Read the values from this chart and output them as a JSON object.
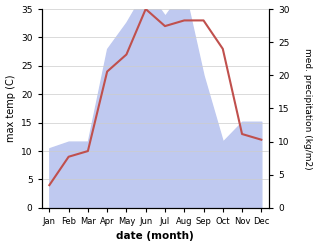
{
  "months": [
    "Jan",
    "Feb",
    "Mar",
    "Apr",
    "May",
    "Jun",
    "Jul",
    "Aug",
    "Sep",
    "Oct",
    "Nov",
    "Dec"
  ],
  "temperature": [
    4,
    9,
    10,
    24,
    27,
    35,
    32,
    33,
    33,
    28,
    13,
    12
  ],
  "precipitation": [
    9,
    10,
    10,
    24,
    28,
    33,
    29,
    33,
    20,
    10,
    13,
    13
  ],
  "temp_color": "#c0504d",
  "precip_fill_color": "#bfc9f0",
  "left_ylabel": "max temp (C)",
  "right_ylabel": "med. precipitation (kg/m2)",
  "xlabel": "date (month)",
  "ylim_left": [
    0,
    35
  ],
  "ylim_right": [
    0,
    30
  ],
  "yticks_left": [
    0,
    5,
    10,
    15,
    20,
    25,
    30,
    35
  ],
  "yticks_right": [
    0,
    5,
    10,
    15,
    20,
    25,
    30
  ],
  "grid_color": "#cccccc",
  "figsize": [
    3.18,
    2.47
  ],
  "dpi": 100
}
